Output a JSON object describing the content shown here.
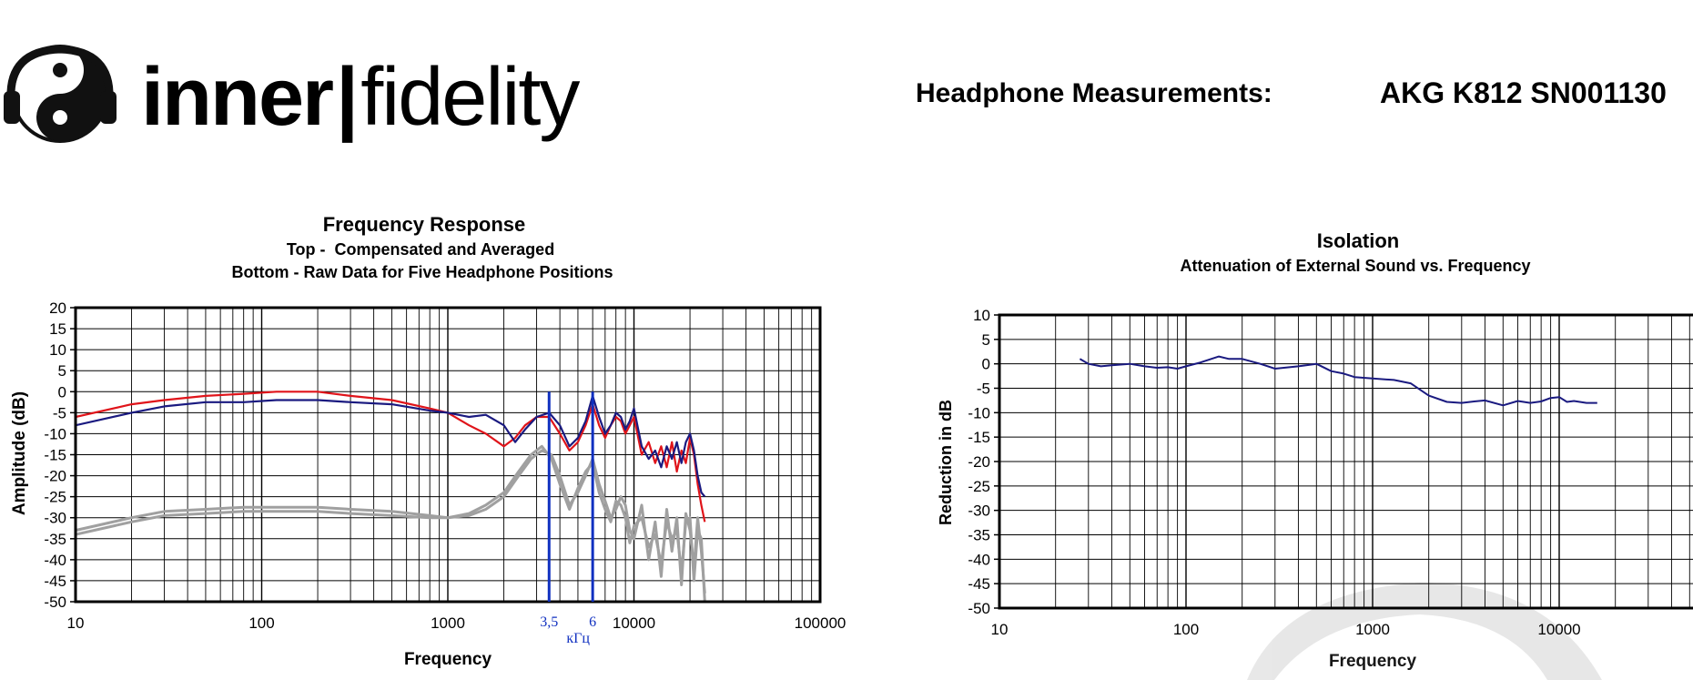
{
  "brand": {
    "name_bold": "inner",
    "separator": "|",
    "name_light": "fidelity",
    "logo_icon": "yin-yang-headphones-icon"
  },
  "header": {
    "label": "Headphone Measurements:",
    "model": "AKG K812 SN001130"
  },
  "colors": {
    "left_channel": "#1a1a80",
    "right_channel": "#e0141a",
    "raw_data": "#a0a0a0",
    "marker": "#1030c0",
    "isolation": "#1a1a80",
    "grid": "#000000"
  },
  "chart_data": [
    {
      "type": "line",
      "title": "Frequency Response",
      "subtitle_1": "Top -  Compensated and Averaged",
      "subtitle_2": "Bottom - Raw Data for Five Headphone Positions",
      "xlabel": "Frequency",
      "ylabel": "Amplitude (dB)",
      "x_scale": "log",
      "xlim": [
        10,
        100000
      ],
      "ylim": [
        -50,
        20
      ],
      "xticks": [
        "10",
        "100",
        "1000",
        "10000",
        "100000"
      ],
      "yticks": [
        "20",
        "15",
        "10",
        "5",
        "0",
        "-5",
        "-10",
        "-15",
        "-20",
        "-25",
        "-30",
        "-35",
        "-40",
        "-45",
        "-50"
      ],
      "grid": true,
      "annotations": {
        "markers": [
          {
            "x": 3500,
            "label": "3,5"
          },
          {
            "x": 6000,
            "label": "6"
          }
        ],
        "unit": "кГц"
      },
      "series": [
        {
          "role": "left",
          "x": [
            10,
            20,
            30,
            50,
            80,
            120,
            200,
            300,
            500,
            800,
            1000,
            1300,
            1600,
            2000,
            2300,
            2600,
            3000,
            3500,
            4000,
            4500,
            5000,
            5500,
            6000,
            6500,
            7000,
            7500,
            8000,
            8500,
            9000,
            9500,
            10000,
            11000,
            12000,
            13000,
            14000,
            15000,
            16000,
            17000,
            18000,
            19000,
            20000,
            21000,
            22000,
            23000,
            24000
          ],
          "y": [
            -8,
            -5,
            -3.5,
            -2.5,
            -2.5,
            -2,
            -2,
            -2.5,
            -3,
            -4.5,
            -5,
            -6,
            -5.5,
            -8,
            -12,
            -9,
            -6,
            -5,
            -8,
            -13,
            -11,
            -7,
            -1,
            -6,
            -10,
            -8,
            -5,
            -6,
            -9,
            -7,
            -4,
            -13,
            -16,
            -14,
            -18,
            -13,
            -16,
            -12,
            -17,
            -12,
            -10,
            -14,
            -20,
            -24,
            -25
          ]
        },
        {
          "role": "right",
          "x": [
            10,
            20,
            30,
            50,
            80,
            120,
            200,
            300,
            500,
            800,
            1000,
            1300,
            1600,
            2000,
            2300,
            2600,
            3000,
            3500,
            4000,
            4500,
            5000,
            5500,
            6000,
            6500,
            7000,
            7500,
            8000,
            8500,
            9000,
            9500,
            10000,
            11000,
            12000,
            13000,
            14000,
            15000,
            16000,
            17000,
            18000,
            19000,
            20000,
            21000,
            22000,
            23000,
            24000
          ],
          "y": [
            -6,
            -3,
            -2,
            -1,
            -0.5,
            0,
            0,
            -1,
            -2,
            -4,
            -5,
            -8,
            -10,
            -13,
            -11,
            -8,
            -6,
            -6,
            -10,
            -14,
            -12,
            -8,
            -3,
            -8,
            -11,
            -8,
            -6,
            -7,
            -10,
            -8,
            -6,
            -15,
            -12,
            -17,
            -13,
            -18,
            -12,
            -19,
            -14,
            -17,
            -11,
            -15,
            -22,
            -27,
            -31
          ]
        },
        {
          "role": "raw",
          "x": [
            10,
            20,
            30,
            50,
            80,
            120,
            200,
            300,
            500,
            800,
            1000,
            1300,
            1600,
            2000,
            2400,
            2800,
            3200,
            3600,
            4000,
            4500,
            5000,
            5500,
            6000,
            6500,
            7000,
            7500,
            8000,
            8500,
            9000,
            9500,
            10000,
            11000,
            12000,
            13000,
            14000,
            15000,
            16000,
            17000,
            18000,
            19000,
            20000,
            21000,
            22000,
            23000,
            24000
          ],
          "y": [
            -33,
            -30,
            -28.5,
            -28,
            -27.5,
            -27.5,
            -27.5,
            -28,
            -28.5,
            -29.5,
            -30,
            -29.5,
            -28,
            -25,
            -20,
            -16,
            -14,
            -15,
            -20,
            -27,
            -24,
            -20,
            -16,
            -22,
            -26,
            -30,
            -28,
            -25,
            -27,
            -33,
            -35,
            -27,
            -40,
            -31,
            -44,
            -28,
            -38,
            -30,
            -46,
            -29,
            -33,
            -42,
            -30,
            -38,
            -48
          ]
        },
        {
          "role": "raw",
          "x": [
            10,
            20,
            30,
            50,
            80,
            120,
            200,
            300,
            500,
            800,
            1000,
            1300,
            1600,
            2000,
            2400,
            2800,
            3200,
            3600,
            4000,
            4500,
            5000,
            5500,
            6000,
            6500,
            7000,
            7500,
            8000,
            8500,
            9000,
            9500,
            10000,
            11000,
            12000,
            13000,
            14000,
            15000,
            16000,
            17000,
            18000,
            19000,
            20000,
            21000,
            22000,
            23000,
            24000
          ],
          "y": [
            -34,
            -31,
            -29.5,
            -29,
            -28.5,
            -28.5,
            -28.5,
            -29,
            -29.5,
            -30,
            -30,
            -29,
            -27,
            -24,
            -19,
            -15,
            -13,
            -16,
            -22,
            -28,
            -23,
            -19,
            -17,
            -24,
            -28,
            -31,
            -26,
            -27,
            -30,
            -36,
            -32,
            -30,
            -37,
            -34,
            -41,
            -31,
            -35,
            -33,
            -43,
            -31,
            -30,
            -45,
            -33,
            -35,
            -50
          ]
        }
      ]
    },
    {
      "type": "line",
      "title": "Isolation",
      "subtitle": "Attenuation of External Sound vs. Frequency",
      "xlabel": "Frequency",
      "ylabel": "Reduction in dB",
      "x_scale": "log",
      "xlim": [
        10,
        100000
      ],
      "ylim": [
        -50,
        10
      ],
      "xticks": [
        "10",
        "100",
        "1000",
        "10000"
      ],
      "yticks": [
        "10",
        "5",
        "0",
        "-5",
        "-10",
        "-15",
        "-20",
        "-25",
        "-30",
        "-35",
        "-40",
        "-45",
        "-50"
      ],
      "grid": true,
      "series": [
        {
          "role": "isolation",
          "x": [
            27,
            30,
            35,
            40,
            50,
            60,
            70,
            80,
            90,
            100,
            120,
            150,
            170,
            200,
            250,
            300,
            400,
            500,
            600,
            700,
            800,
            1000,
            1300,
            1600,
            2000,
            2500,
            3000,
            3500,
            4000,
            5000,
            6000,
            7000,
            8000,
            9000,
            10000,
            11000,
            12000,
            14000,
            16000
          ],
          "y": [
            1,
            0,
            -0.5,
            -0.3,
            0,
            -0.5,
            -0.8,
            -0.7,
            -1,
            -0.5,
            0.3,
            1.5,
            1,
            1,
            0,
            -1,
            -0.5,
            0,
            -1.5,
            -2,
            -2.7,
            -3,
            -3.3,
            -4,
            -6.5,
            -7.8,
            -8,
            -7.7,
            -7.5,
            -8.5,
            -7.6,
            -8,
            -7.7,
            -7,
            -6.8,
            -7.8,
            -7.6,
            -8,
            -8
          ]
        }
      ]
    }
  ]
}
